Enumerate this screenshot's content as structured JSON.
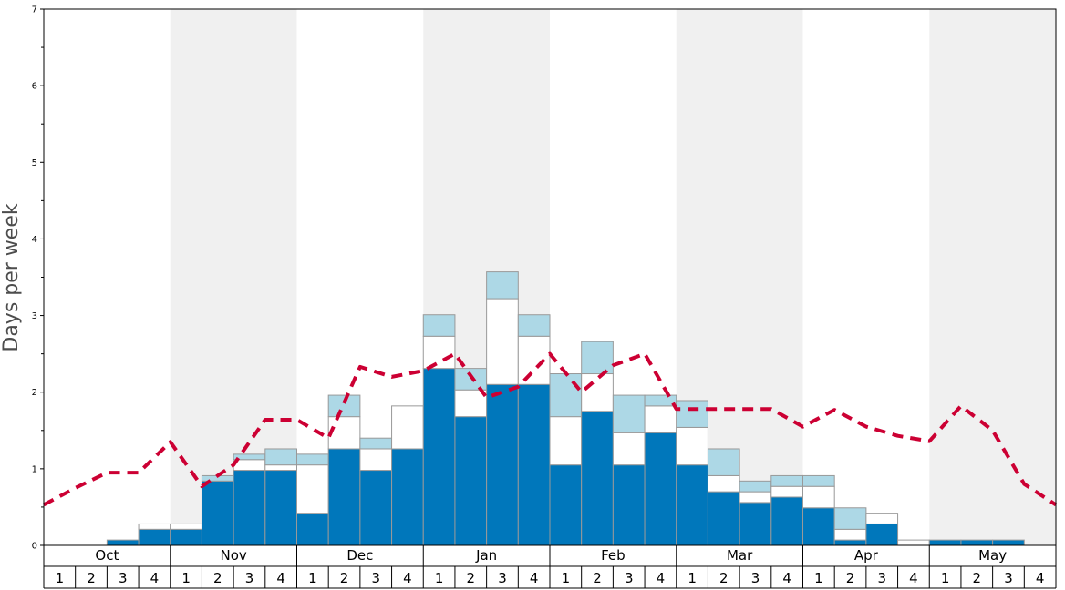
{
  "chart_data": {
    "type": "bar",
    "title": "",
    "ylabel": "Days per week",
    "ylim": [
      0,
      7
    ],
    "yticks": [
      0,
      1,
      2,
      3,
      4,
      5,
      6,
      7
    ],
    "months": [
      "Oct",
      "Nov",
      "Dec",
      "Jan",
      "Feb",
      "Mar",
      "Apr",
      "May"
    ],
    "weeks_per_month": 4,
    "week_labels": [
      "1",
      "2",
      "3",
      "4"
    ],
    "series": [
      {
        "name": "",
        "color": "#0077bb",
        "values": [
          0,
          0,
          0.07,
          0.21,
          0.21,
          0.84,
          0.98,
          0.98,
          0.42,
          1.26,
          0.98,
          1.26,
          2.31,
          1.68,
          2.1,
          2.1,
          1.05,
          1.75,
          1.05,
          1.47,
          1.05,
          0.7,
          0.56,
          0.63,
          0.49,
          0.07,
          0.28,
          0,
          0.07,
          0.07,
          0.07,
          0
        ]
      },
      {
        "name": "",
        "color": "#ffffff",
        "values": [
          0,
          0,
          0,
          0.07,
          0.07,
          0,
          0.14,
          0.07,
          0.63,
          0.42,
          0.28,
          0.56,
          0.42,
          0.35,
          1.12,
          0.63,
          0.63,
          0.49,
          0.42,
          0.35,
          0.49,
          0.21,
          0.14,
          0.14,
          0.28,
          0.14,
          0.14,
          0.07,
          0,
          0,
          0,
          0
        ]
      },
      {
        "name": "",
        "color": "#add8e6",
        "values": [
          0,
          0,
          0,
          0,
          0,
          0.07,
          0.07,
          0.21,
          0.14,
          0.28,
          0.14,
          0,
          0.28,
          0.28,
          0.35,
          0.28,
          0.56,
          0.42,
          0.49,
          0.14,
          0.35,
          0.35,
          0.14,
          0.14,
          0.14,
          0.28,
          0,
          0,
          0,
          0,
          0,
          0
        ]
      }
    ],
    "average_line": {
      "name": "",
      "color": "#cc0033",
      "style": "dashed",
      "values": [
        0.53,
        0.75,
        0.95,
        0.95,
        1.35,
        0.77,
        1.05,
        1.64,
        1.64,
        1.4,
        2.33,
        2.2,
        2.28,
        2.5,
        1.93,
        2.07,
        2.5,
        2.0,
        2.35,
        2.5,
        1.78,
        1.78,
        1.78,
        1.78,
        1.55,
        1.77,
        1.55,
        1.43,
        1.36,
        1.82,
        1.5,
        0.8,
        0.53
      ]
    },
    "shading": {
      "shaded_months": [
        "Nov",
        "Jan",
        "Mar",
        "May"
      ],
      "color": "#f0f0f0"
    },
    "grid": false
  }
}
